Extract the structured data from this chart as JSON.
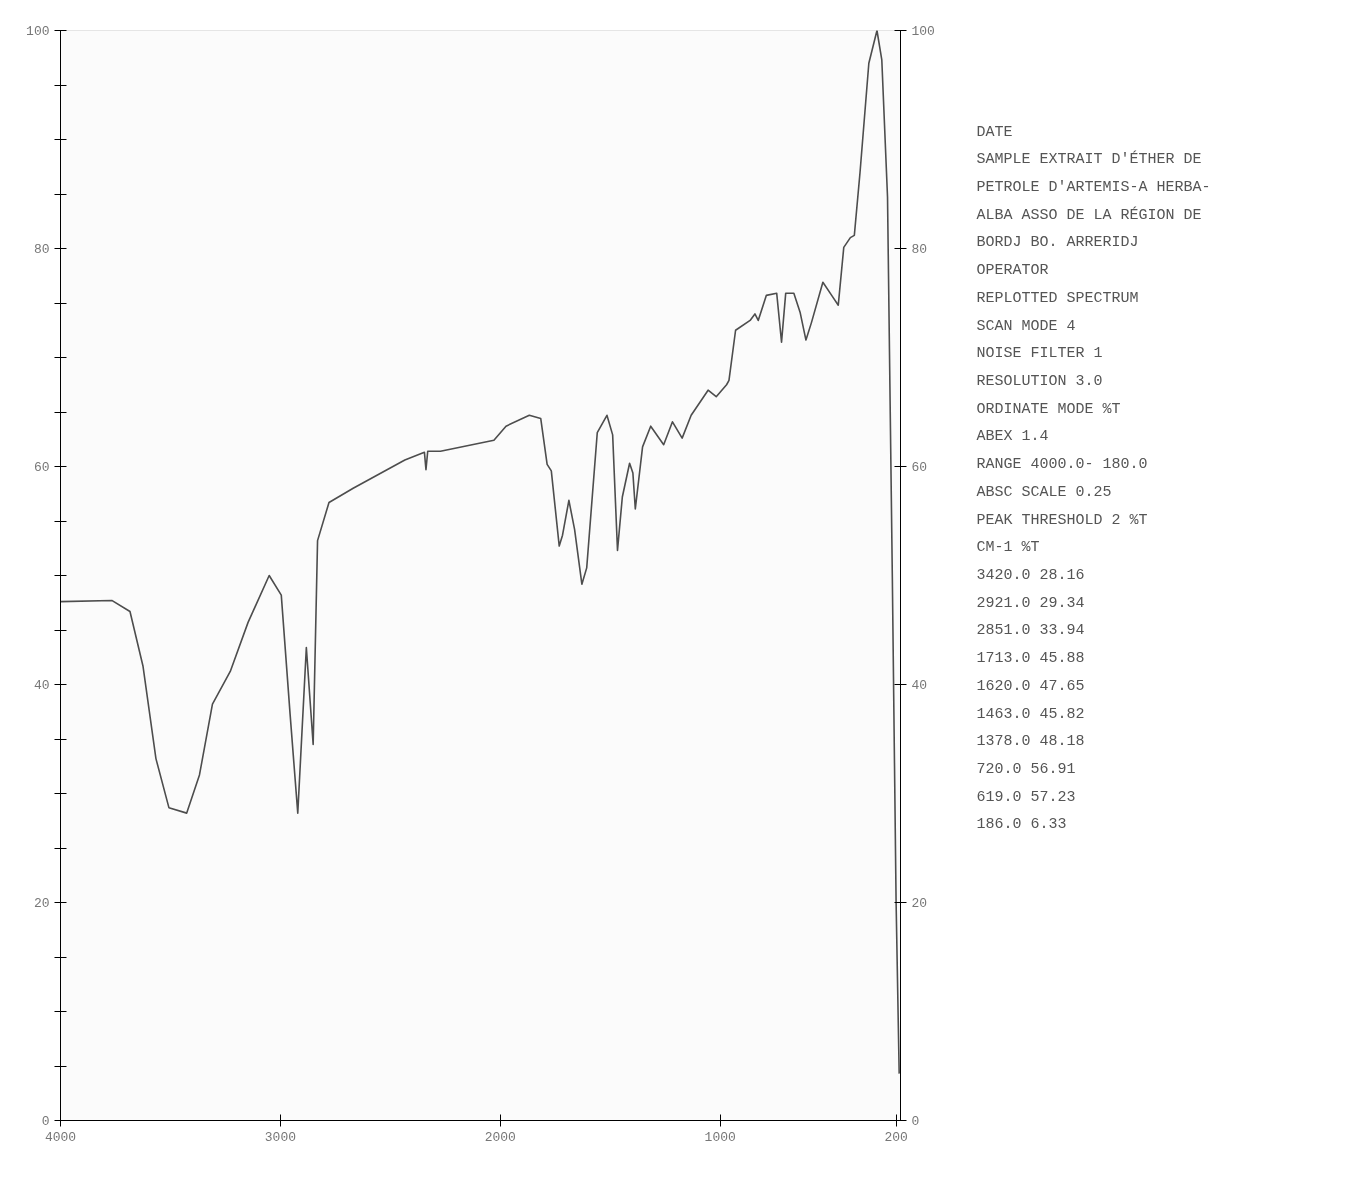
{
  "chart_data": {
    "type": "line",
    "xlim": [
      4000,
      180
    ],
    "xticks": [
      4000,
      3000,
      2000,
      1000,
      200
    ],
    "ylim": [
      0,
      100
    ],
    "yticks": [
      0,
      {
        "value": 5,
        "label": null
      },
      {
        "value": 10,
        "label": null
      },
      {
        "value": 15,
        "label": null
      },
      20,
      {
        "value": 25,
        "label": null
      },
      {
        "value": 30,
        "label": null
      },
      {
        "value": 35,
        "label": null
      },
      40,
      {
        "value": 45,
        "label": null
      },
      {
        "value": 50,
        "label": null
      },
      {
        "value": 55,
        "label": null
      },
      60,
      {
        "value": 65,
        "label": null
      },
      {
        "value": 70,
        "label": null
      },
      {
        "value": 75,
        "label": null
      },
      80,
      {
        "value": 85,
        "label": null
      },
      {
        "value": 90,
        "label": null
      },
      {
        "value": 95,
        "label": null
      },
      100
    ],
    "y2lim": [
      0,
      100
    ],
    "y2ticks": [
      0,
      20,
      40,
      60,
      80,
      100
    ],
    "grid": false,
    "series": [
      {
        "color": "#4d4d4d",
        "x": [
          4000,
          3765,
          3684,
          3625,
          3566,
          3507,
          3426,
          3368,
          3309,
          3228,
          3147,
          3051,
          2996,
          2956,
          2921,
          2882,
          2851,
          2831,
          2779,
          2669,
          2434,
          2345,
          2338,
          2330,
          2272,
          2029,
          1974,
          1868,
          1816,
          1787,
          1768,
          1732,
          1717,
          1688,
          1662,
          1629,
          1607,
          1559,
          1515,
          1489,
          1467,
          1445,
          1412,
          1397,
          1386,
          1353,
          1316,
          1257,
          1217,
          1173,
          1132,
          1055,
          1018,
          971,
          960,
          930,
          864,
          842,
          827,
          790,
          743,
          721,
          702,
          665,
          636,
          610,
          585,
          533,
          493,
          463,
          438,
          408,
          390,
          364,
          324,
          287,
          265,
          239,
          217,
          200,
          186
        ],
        "values": [
          47.6,
          47.7,
          46.7,
          41.7,
          33.2,
          28.7,
          28.2,
          31.7,
          38.2,
          41.2,
          45.7,
          50.0,
          48.2,
          37.3,
          28.2,
          43.4,
          34.5,
          53.2,
          56.7,
          58.0,
          60.6,
          61.3,
          59.7,
          61.4,
          61.4,
          62.4,
          63.7,
          64.7,
          64.4,
          60.2,
          59.6,
          52.7,
          53.7,
          56.9,
          54.2,
          49.2,
          50.7,
          63.1,
          64.7,
          62.9,
          52.3,
          57.2,
          60.3,
          59.4,
          56.1,
          61.8,
          63.7,
          62.0,
          64.1,
          62.6,
          64.7,
          67.0,
          66.4,
          67.5,
          67.9,
          72.5,
          73.4,
          74.0,
          73.4,
          75.7,
          75.9,
          71.4,
          75.9,
          75.9,
          74.1,
          71.6,
          73.2,
          76.9,
          75.7,
          74.8,
          80.1,
          81.0,
          81.2,
          87.0,
          97.0,
          100.0,
          97.3,
          84.7,
          49.6,
          20.0,
          4.3
        ]
      }
    ],
    "annotations": [
      "DATE",
      "SAMPLE EXTRAIT D'ÉTHER DE",
      "PETROLE D'ARTEMIS-A HERBA-",
      "ALBA ASSO DE LA RÉGION DE",
      "BORDJ BO. ARRERIDJ",
      "OPERATOR",
      "REPLOTTED SPECTRUM",
      "SCAN MODE 4",
      "NOISE FILTER 1",
      "RESOLUTION 3.0",
      "ORDINATE MODE %T",
      "ABEX 1.4",
      "RANGE 4000.0- 180.0",
      "ABSC SCALE 0.25",
      "PEAK THRESHOLD 2 %T",
      "CM-1 %T",
      "3420.0 28.16",
      "2921.0 29.34",
      "2851.0 33.94",
      "1713.0 45.88",
      "1620.0 47.65",
      "1463.0 45.82",
      "1378.0 48.18",
      "720.0 56.91",
      "619.0 57.23",
      "186.0 6.33"
    ]
  }
}
